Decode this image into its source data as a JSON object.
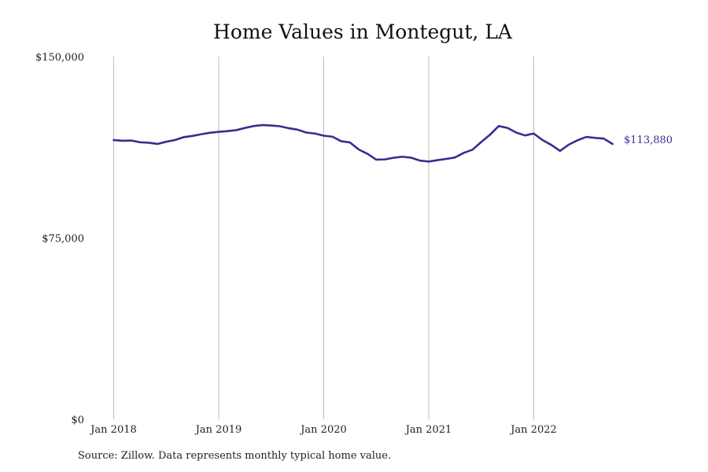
{
  "chart_data": {
    "type": "line",
    "title": "Home Values in Montegut, LA",
    "xlabel": "",
    "ylabel": "",
    "ylim": [
      0,
      150000
    ],
    "y_ticks": [
      0,
      75000,
      150000
    ],
    "y_tick_labels": [
      "$0",
      "$75,000",
      "$150,000"
    ],
    "x_ticks": [
      "2018-01",
      "2019-01",
      "2020-01",
      "2021-01",
      "2022-01"
    ],
    "x_tick_labels": [
      "Jan 2018",
      "Jan 2019",
      "Jan 2020",
      "Jan 2021",
      "Jan 2022"
    ],
    "grid": "vertical",
    "legend": "none",
    "line_color": "#33308f",
    "end_label": "$113,880",
    "series": [
      {
        "x": [
          "2018-01",
          "2018-02",
          "2018-03",
          "2018-04",
          "2018-05",
          "2018-06",
          "2018-07",
          "2018-08",
          "2018-09",
          "2018-10",
          "2018-11",
          "2018-12",
          "2019-01",
          "2019-02",
          "2019-03",
          "2019-04",
          "2019-05",
          "2019-06",
          "2019-07",
          "2019-08",
          "2019-09",
          "2019-10",
          "2019-11",
          "2019-12",
          "2020-01",
          "2020-02",
          "2020-03",
          "2020-04",
          "2020-05",
          "2020-06",
          "2020-07",
          "2020-08",
          "2020-09",
          "2020-10",
          "2020-11",
          "2020-12",
          "2021-01",
          "2021-02",
          "2021-03",
          "2021-04",
          "2021-05",
          "2021-06",
          "2021-07",
          "2021-08",
          "2021-09",
          "2021-10",
          "2021-11",
          "2021-12",
          "2022-01",
          "2022-02",
          "2022-03",
          "2022-04",
          "2022-05",
          "2022-06",
          "2022-07",
          "2022-08",
          "2022-09",
          "2022-10"
        ],
        "values": [
          115500,
          115200,
          115300,
          114600,
          114400,
          113900,
          114800,
          115500,
          116700,
          117200,
          117900,
          118500,
          118900,
          119200,
          119600,
          120500,
          121300,
          121700,
          121500,
          121200,
          120400,
          119800,
          118600,
          118200,
          117300,
          116900,
          115000,
          114500,
          111600,
          109800,
          107400,
          107500,
          108200,
          108600,
          108200,
          107000,
          106600,
          107200,
          107700,
          108300,
          110200,
          111500,
          114700,
          117700,
          121300,
          120500,
          118600,
          117400,
          118200,
          115500,
          113500,
          111000,
          113600,
          115400,
          116800,
          116400,
          116100,
          113880
        ]
      }
    ]
  },
  "source_note": "Source: Zillow. Data represents monthly typical home value."
}
